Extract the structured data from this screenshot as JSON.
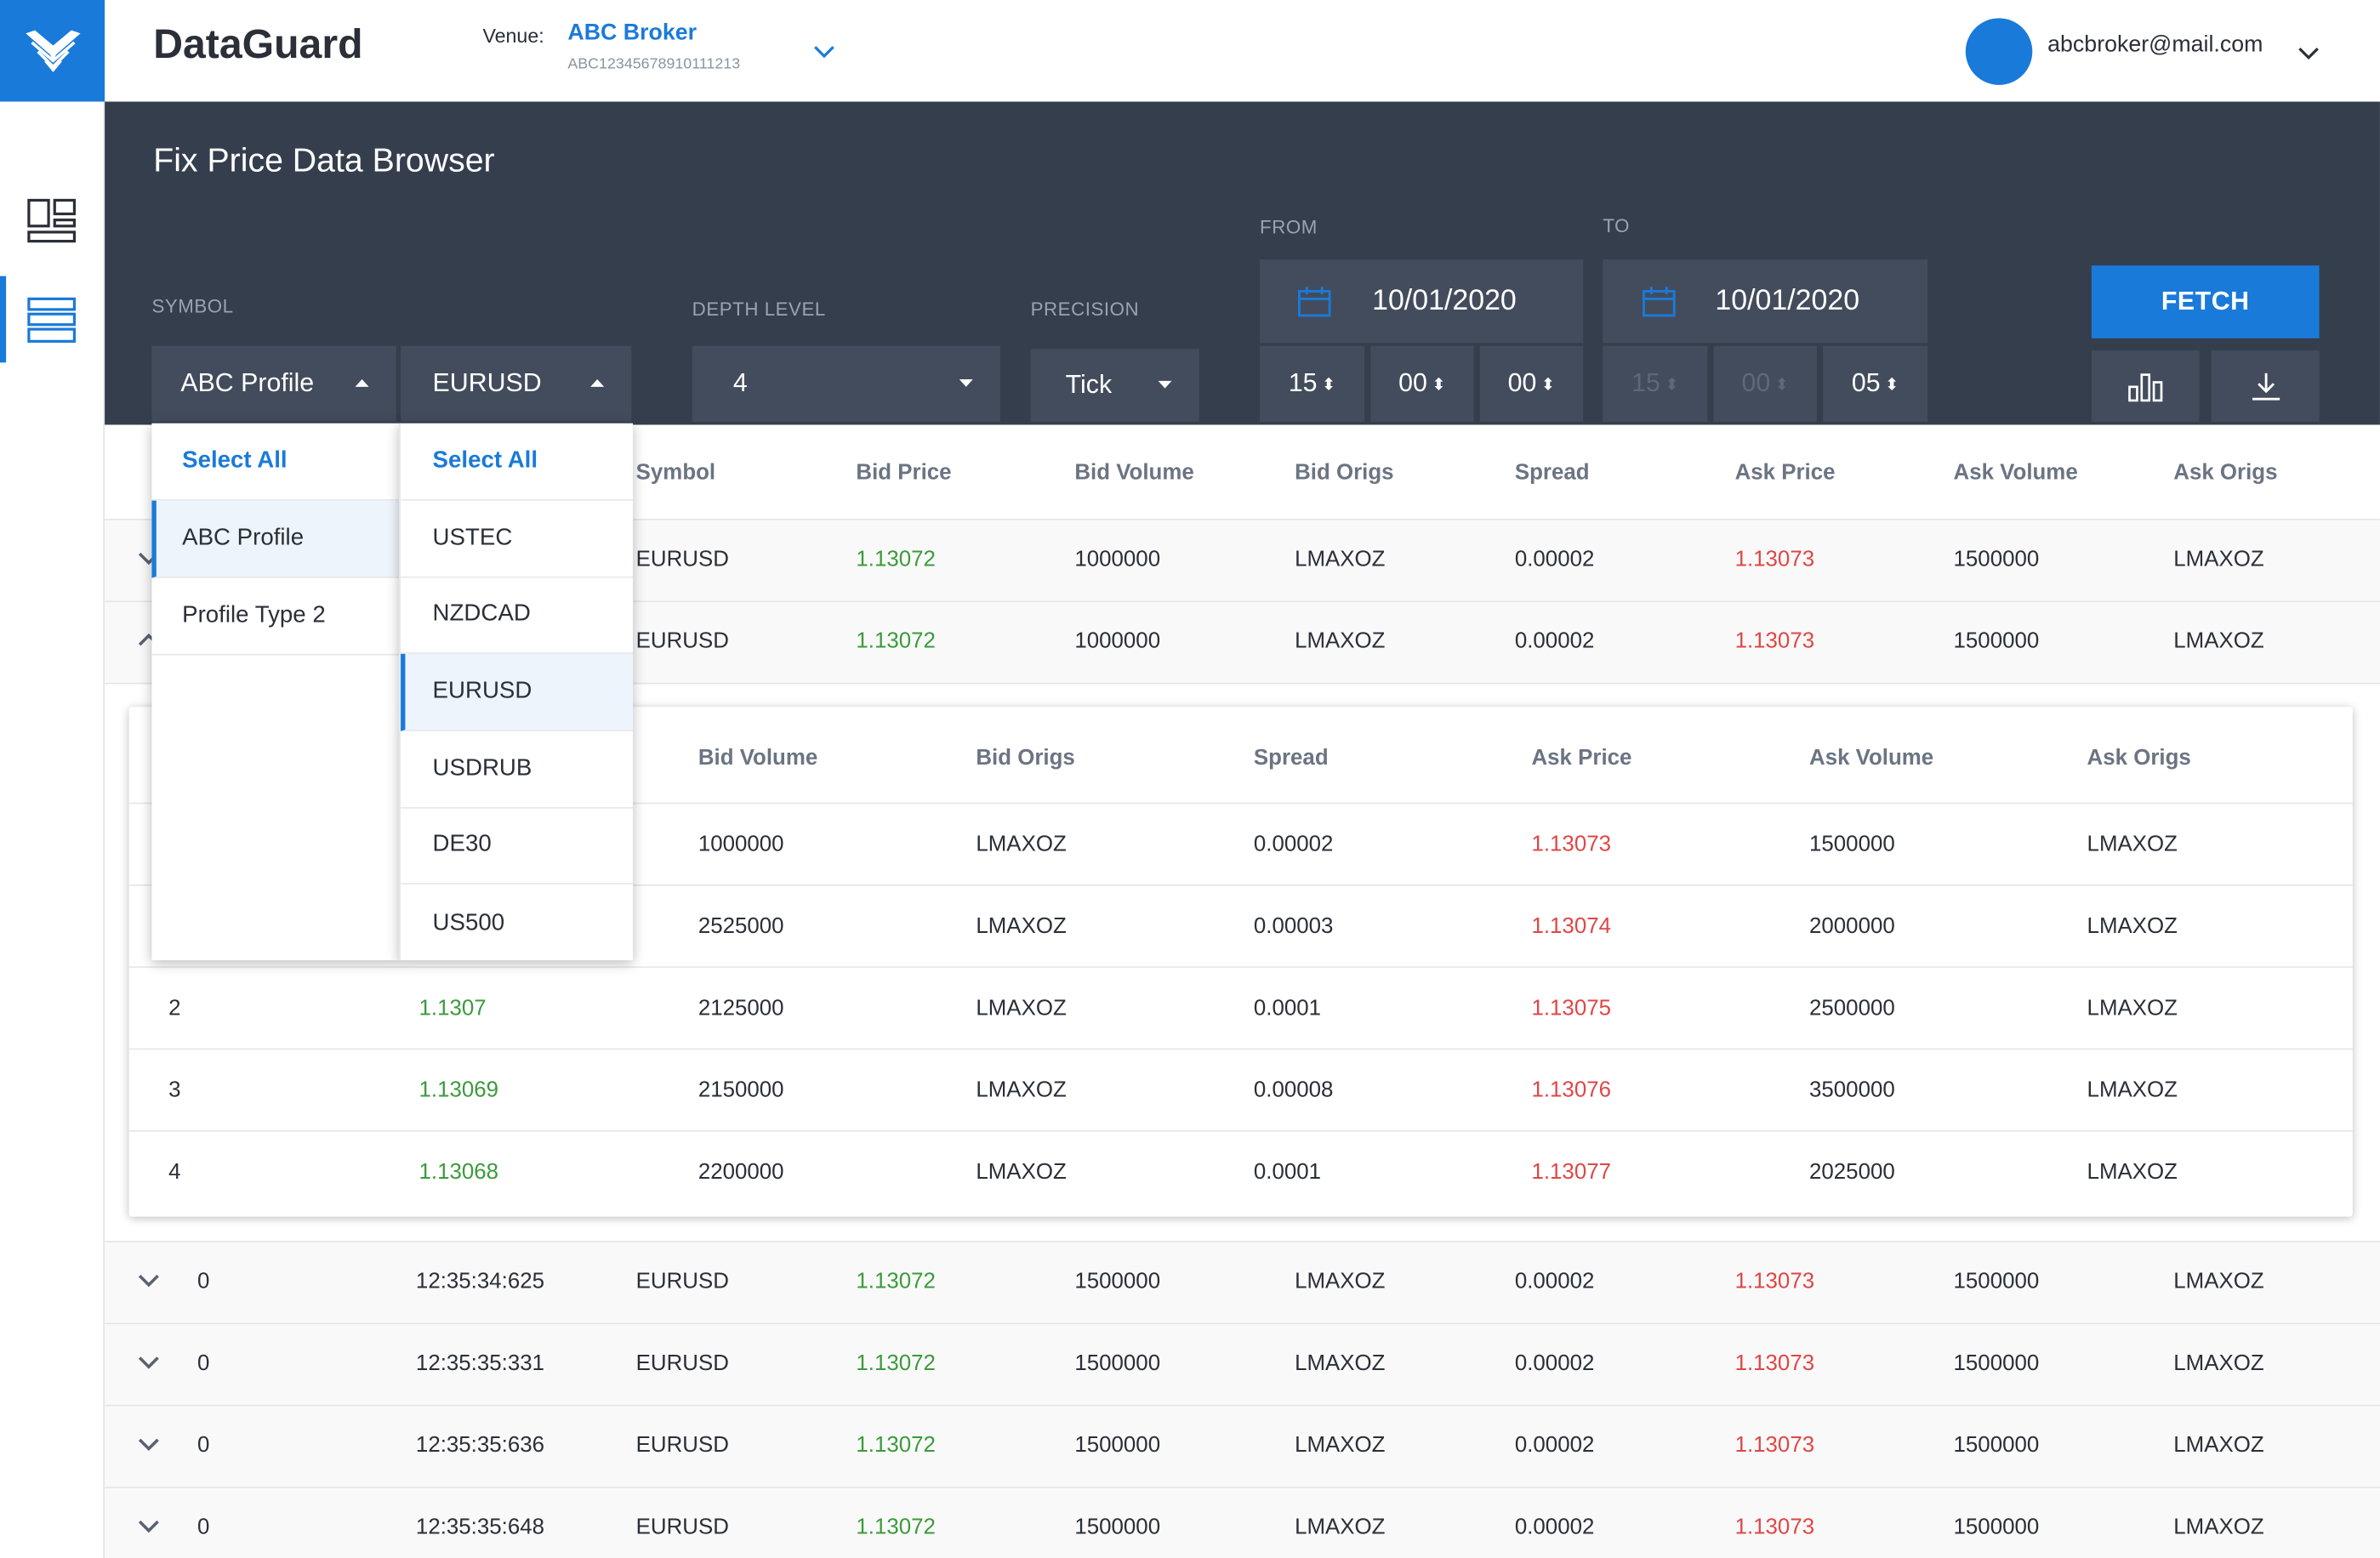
{
  "app": {
    "brand": "DataGuard",
    "logo_icon": "dataguard-logo-icon",
    "accent": "#1a7ad9"
  },
  "venue": {
    "label": "Venue:",
    "name": "ABC Broker",
    "id": "ABC12345678910111213"
  },
  "user": {
    "email": "abcbroker@mail.com"
  },
  "page": {
    "title": "Fix Price Data Browser"
  },
  "filters": {
    "symbol_label": "SYMBOL",
    "profile_value": "ABC Profile",
    "symbol_value": "EURUSD",
    "depth_label": "DEPTH LEVEL",
    "depth_value": "4",
    "precision_label": "PRECISION",
    "precision_value": "Tick",
    "from_label": "FROM",
    "from_date": "10/01/2020",
    "from_time": {
      "h": "15",
      "m": "00",
      "s": "00"
    },
    "to_label": "TO",
    "to_date": "10/01/2020",
    "to_time": {
      "h": "15",
      "m": "00",
      "s": "05"
    },
    "fetch_label": "FETCH"
  },
  "profile_menu": {
    "select_all": "Select All",
    "items": [
      "ABC Profile",
      "Profile Type 2"
    ],
    "selected": "ABC Profile"
  },
  "symbol_menu": {
    "select_all": "Select All",
    "items": [
      "USTEC",
      "NZDCAD",
      "EURUSD",
      "USDRUB",
      "DE30",
      "US500"
    ],
    "selected": "EURUSD"
  },
  "table": {
    "headers": [
      "Symbol",
      "Bid Price",
      "Bid Volume",
      "Bid Origs",
      "Spread",
      "Ask Price",
      "Ask Volume",
      "Ask Origs"
    ],
    "top_rows": [
      {
        "symbol": "EURUSD",
        "bid": "1.13072",
        "bid_vol": "1000000",
        "bid_origs": "LMAXOZ",
        "spread": "0.00002",
        "ask": "1.13073",
        "ask_vol": "1500000",
        "ask_origs": "LMAXOZ"
      },
      {
        "symbol": "EURUSD",
        "bid": "1.13072",
        "bid_vol": "1000000",
        "bid_origs": "LMAXOZ",
        "spread": "0.00002",
        "ask": "1.13073",
        "ask_vol": "1500000",
        "ask_origs": "LMAXOZ"
      }
    ],
    "bottom_rows": [
      {
        "level": "0",
        "time": "12:35:34:625",
        "symbol": "EURUSD",
        "bid": "1.13072",
        "bid_vol": "1500000",
        "bid_origs": "LMAXOZ",
        "spread": "0.00002",
        "ask": "1.13073",
        "ask_vol": "1500000",
        "ask_origs": "LMAXOZ"
      },
      {
        "level": "0",
        "time": "12:35:35:331",
        "symbol": "EURUSD",
        "bid": "1.13072",
        "bid_vol": "1500000",
        "bid_origs": "LMAXOZ",
        "spread": "0.00002",
        "ask": "1.13073",
        "ask_vol": "1500000",
        "ask_origs": "LMAXOZ"
      },
      {
        "level": "0",
        "time": "12:35:35:636",
        "symbol": "EURUSD",
        "bid": "1.13072",
        "bid_vol": "1500000",
        "bid_origs": "LMAXOZ",
        "spread": "0.00002",
        "ask": "1.13073",
        "ask_vol": "1500000",
        "ask_origs": "LMAXOZ"
      },
      {
        "level": "0",
        "time": "12:35:35:648",
        "symbol": "EURUSD",
        "bid": "1.13072",
        "bid_vol": "1500000",
        "bid_origs": "LMAXOZ",
        "spread": "0.00002",
        "ask": "1.13073",
        "ask_vol": "1500000",
        "ask_origs": "LMAXOZ"
      }
    ]
  },
  "detail": {
    "headers": [
      "Bid Volume",
      "Bid Origs",
      "Spread",
      "Ask Price",
      "Ask Volume",
      "Ask Origs"
    ],
    "rows": [
      {
        "level": "",
        "bid": "",
        "bid_vol": "1000000",
        "bid_origs": "LMAXOZ",
        "spread": "0.00002",
        "ask": "1.13073",
        "ask_vol": "1500000",
        "ask_origs": "LMAXOZ"
      },
      {
        "level": "",
        "bid": "",
        "bid_vol": "2525000",
        "bid_origs": "LMAXOZ",
        "spread": "0.00003",
        "ask": "1.13074",
        "ask_vol": "2000000",
        "ask_origs": "LMAXOZ"
      },
      {
        "level": "2",
        "bid": "1.1307",
        "bid_vol": "2125000",
        "bid_origs": "LMAXOZ",
        "spread": "0.0001",
        "ask": "1.13075",
        "ask_vol": "2500000",
        "ask_origs": "LMAXOZ"
      },
      {
        "level": "3",
        "bid": "1.13069",
        "bid_vol": "2150000",
        "bid_origs": "LMAXOZ",
        "spread": "0.00008",
        "ask": "1.13076",
        "ask_vol": "3500000",
        "ask_origs": "LMAXOZ"
      },
      {
        "level": "4",
        "bid": "1.13068",
        "bid_vol": "2200000",
        "bid_origs": "LMAXOZ",
        "spread": "0.0001",
        "ask": "1.13077",
        "ask_vol": "2025000",
        "ask_origs": "LMAXOZ"
      }
    ]
  },
  "colors": {
    "bid": "#3c9a3c",
    "ask": "#e04646",
    "panel": "#353e4d"
  }
}
